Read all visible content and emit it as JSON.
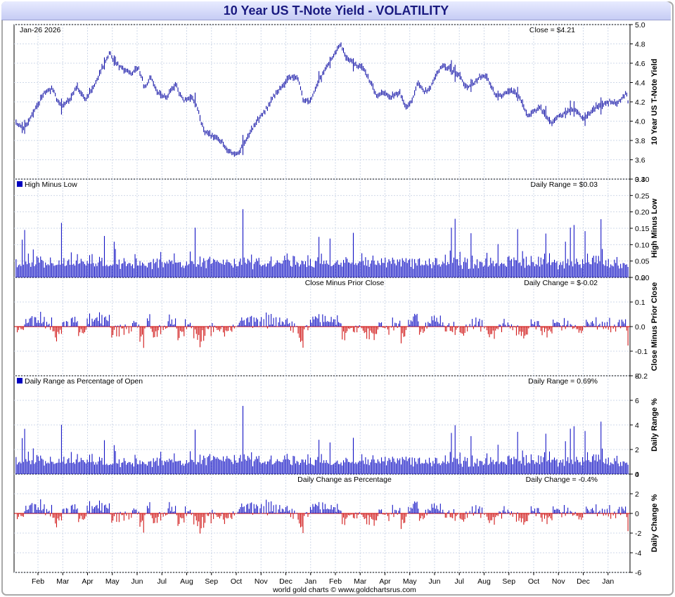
{
  "title": "10 Year US T-Note Yield - VOLATILITY",
  "footer": "world gold charts © www.goldchartsrus.com",
  "date_label": "Jan-26  2026",
  "colors": {
    "up": "#0000c0",
    "down": "#cc0000",
    "price": "#0000a0",
    "grid": "#cfd8e8"
  },
  "chart_data": {
    "type": "bar",
    "x_months": [
      "Feb",
      "Mar",
      "Apr",
      "May",
      "Jun",
      "Jul",
      "Aug",
      "Sep",
      "Oct",
      "Nov",
      "Dec",
      "Jan",
      "Feb",
      "Mar",
      "Apr",
      "May",
      "Jun",
      "Jul",
      "Aug",
      "Sep",
      "Oct",
      "Nov",
      "Dec",
      "Jan"
    ],
    "trading_days": 500,
    "panels": [
      {
        "key": "price",
        "type": "ohlc",
        "ylabel": "10 Year US T-Note Yield",
        "readout": "Close = $4.21",
        "ylim": [
          3.4,
          5.0
        ],
        "yticks": [
          "3.4",
          "3.6",
          "3.8",
          "4.0",
          "4.2",
          "4.4",
          "4.6",
          "4.8",
          "5.0"
        ],
        "anchors": [
          [
            0,
            3.98
          ],
          [
            10,
            3.92
          ],
          [
            25,
            4.15
          ],
          [
            35,
            4.3
          ],
          [
            45,
            4.33
          ],
          [
            55,
            4.15
          ],
          [
            65,
            4.22
          ],
          [
            75,
            4.35
          ],
          [
            85,
            4.22
          ],
          [
            95,
            4.35
          ],
          [
            105,
            4.55
          ],
          [
            115,
            4.7
          ],
          [
            125,
            4.58
          ],
          [
            140,
            4.5
          ],
          [
            150,
            4.55
          ],
          [
            158,
            4.35
          ],
          [
            165,
            4.45
          ],
          [
            175,
            4.28
          ],
          [
            185,
            4.25
          ],
          [
            195,
            4.38
          ],
          [
            205,
            4.22
          ],
          [
            215,
            4.25
          ],
          [
            222,
            4.15
          ],
          [
            230,
            3.9
          ],
          [
            240,
            3.85
          ],
          [
            250,
            3.8
          ],
          [
            260,
            3.7
          ],
          [
            268,
            3.65
          ],
          [
            275,
            3.7
          ],
          [
            285,
            3.85
          ],
          [
            295,
            4.0
          ],
          [
            305,
            4.1
          ],
          [
            315,
            4.25
          ],
          [
            325,
            4.35
          ],
          [
            335,
            4.45
          ],
          [
            345,
            4.45
          ],
          [
            352,
            4.22
          ],
          [
            360,
            4.2
          ],
          [
            370,
            4.4
          ],
          [
            380,
            4.55
          ],
          [
            390,
            4.7
          ],
          [
            398,
            4.8
          ],
          [
            405,
            4.65
          ],
          [
            415,
            4.6
          ],
          [
            425,
            4.55
          ],
          [
            435,
            4.4
          ],
          [
            442,
            4.25
          ],
          [
            450,
            4.3
          ],
          [
            460,
            4.25
          ],
          [
            470,
            4.3
          ],
          [
            478,
            4.15
          ],
          [
            485,
            4.2
          ],
          [
            492,
            4.4
          ],
          [
            500,
            4.3
          ],
          [
            508,
            4.35
          ],
          [
            515,
            4.48
          ],
          [
            522,
            4.58
          ],
          [
            530,
            4.55
          ],
          [
            538,
            4.5
          ],
          [
            545,
            4.45
          ],
          [
            552,
            4.35
          ],
          [
            560,
            4.38
          ],
          [
            568,
            4.45
          ],
          [
            575,
            4.48
          ],
          [
            583,
            4.35
          ],
          [
            590,
            4.25
          ],
          [
            598,
            4.28
          ],
          [
            605,
            4.32
          ],
          [
            612,
            4.3
          ],
          [
            620,
            4.2
          ],
          [
            627,
            4.05
          ],
          [
            635,
            4.1
          ],
          [
            642,
            4.15
          ],
          [
            650,
            4.05
          ],
          [
            657,
            3.98
          ],
          [
            665,
            4.05
          ],
          [
            672,
            4.08
          ],
          [
            680,
            4.12
          ],
          [
            688,
            4.1
          ],
          [
            695,
            4.02
          ],
          [
            705,
            4.1
          ],
          [
            712,
            4.15
          ],
          [
            720,
            4.18
          ],
          [
            728,
            4.2
          ],
          [
            735,
            4.18
          ],
          [
            742,
            4.22
          ],
          [
            748,
            4.3
          ],
          [
            750,
            4.21
          ]
        ]
      },
      {
        "key": "hl",
        "type": "bars",
        "label": "High Minus Low",
        "ylabel": "High Minus Low",
        "readout": "Daily Range = $0.03",
        "ylim": [
          0.0,
          0.3
        ],
        "yticks": [
          "0.00",
          "0.05",
          "0.10",
          "0.15",
          "0.20",
          "0.25",
          "0.30"
        ]
      },
      {
        "key": "chg",
        "type": "bars",
        "label": "Close Minus Prior Close",
        "ylabel": "Close Minus Prior Close",
        "readout": "Daily Change = $-0.02",
        "ylim": [
          -0.2,
          0.2
        ],
        "yticks": [
          "-0.2",
          "-0.1",
          "0.0",
          "0.1",
          "0.2"
        ]
      },
      {
        "key": "pct_range",
        "type": "bars",
        "label": "Daily Range as Percentage of Open",
        "ylabel": "Daily Range %",
        "readout": "Daily Range = 0.69%",
        "ylim": [
          0,
          8
        ],
        "yticks": [
          "0",
          "2",
          "4",
          "6",
          "8"
        ]
      },
      {
        "key": "pct_chg",
        "type": "bars",
        "label": "Daily Change as Percentage",
        "ylabel": "Daily Change %",
        "readout": "Daily Change = -0.4%",
        "ylim": [
          -6,
          4
        ],
        "yticks": [
          "-6",
          "-4",
          "-2",
          "0",
          "2",
          "4"
        ]
      }
    ]
  }
}
